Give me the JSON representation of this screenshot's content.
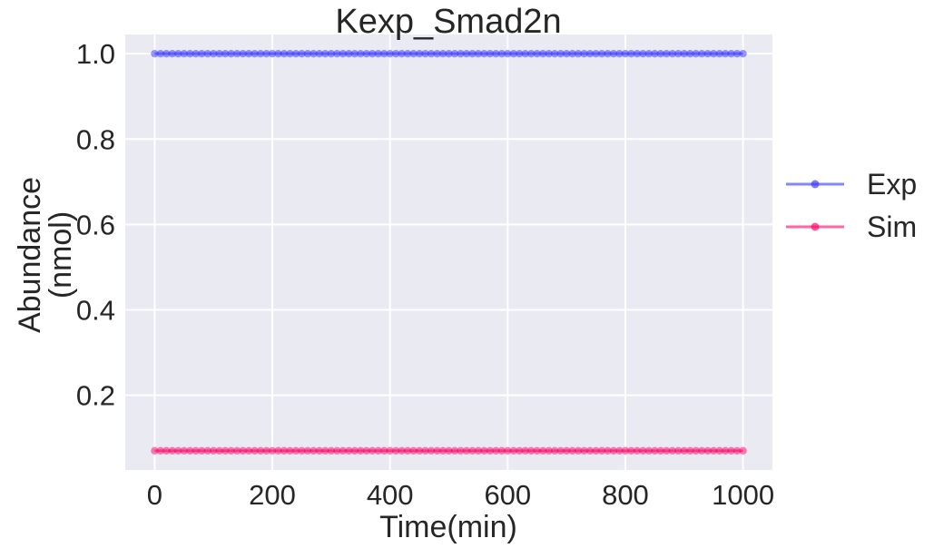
{
  "chart_data": {
    "type": "line",
    "title": "Kexp_Smad2n",
    "xlabel": "Time(min)",
    "ylabel_lines": [
      "Abundance",
      "(nmol)"
    ],
    "xlim": [
      -50,
      1050
    ],
    "ylim": [
      0.025,
      1.045
    ],
    "x_ticks": [
      0,
      200,
      400,
      600,
      800,
      1000
    ],
    "x_tick_labels": [
      "0",
      "200",
      "400",
      "600",
      "800",
      "1000"
    ],
    "y_ticks": [
      0.2,
      0.4,
      0.6,
      0.8,
      1.0
    ],
    "y_tick_labels": [
      "0.2",
      "0.4",
      "0.6",
      "0.8",
      "1.0"
    ],
    "grid": true,
    "background": "#eaeaf2",
    "legend_position": "right-outside",
    "x": {
      "start": 0,
      "end": 1000,
      "step": 10
    },
    "series": [
      {
        "name": "Exp",
        "value": 1.0,
        "color": "#3333ff",
        "marker": "circle"
      },
      {
        "name": "Sim",
        "value": 0.07,
        "color": "#ff0066",
        "marker": "circle"
      }
    ]
  }
}
